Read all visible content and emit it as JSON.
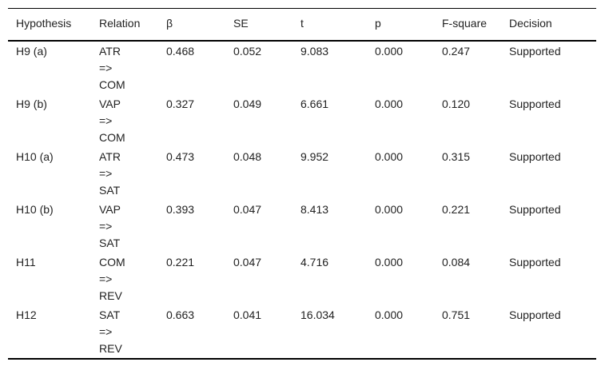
{
  "table": {
    "headers": {
      "hypothesis": "Hypothesis",
      "relation": "Relation",
      "beta": "β",
      "se": "SE",
      "t": "t",
      "p": "p",
      "fsquare": "F-square",
      "decision": "Decision"
    },
    "rows": [
      {
        "hypothesis": "H9 (a)",
        "relation": {
          "from": "ATR",
          "arrow": "=>",
          "to": "COM"
        },
        "beta": "0.468",
        "se": "0.052",
        "t": "9.083",
        "p": "0.000",
        "fsquare": "0.247",
        "decision": "Supported"
      },
      {
        "hypothesis": "H9 (b)",
        "relation": {
          "from": "VAP",
          "arrow": "=>",
          "to": "COM"
        },
        "beta": "0.327",
        "se": "0.049",
        "t": "6.661",
        "p": "0.000",
        "fsquare": "0.120",
        "decision": "Supported"
      },
      {
        "hypothesis": "H10 (a)",
        "relation": {
          "from": "ATR",
          "arrow": "=>",
          "to": "SAT"
        },
        "beta": "0.473",
        "se": "0.048",
        "t": "9.952",
        "p": "0.000",
        "fsquare": "0.315",
        "decision": "Supported"
      },
      {
        "hypothesis": "H10 (b)",
        "relation": {
          "from": "VAP",
          "arrow": "=>",
          "to": "SAT"
        },
        "beta": "0.393",
        "se": "0.047",
        "t": "8.413",
        "p": "0.000",
        "fsquare": "0.221",
        "decision": "Supported"
      },
      {
        "hypothesis": "H11",
        "relation": {
          "from": "COM",
          "arrow": "=>",
          "to": "REV"
        },
        "beta": "0.221",
        "se": "0.047",
        "t": "4.716",
        "p": "0.000",
        "fsquare": "0.084",
        "decision": "Supported"
      },
      {
        "hypothesis": "H12",
        "relation": {
          "from": "SAT",
          "arrow": "=>",
          "to": "REV"
        },
        "beta": "0.663",
        "se": "0.041",
        "t": "16.034",
        "p": "0.000",
        "fsquare": "0.751",
        "decision": "Supported"
      }
    ]
  }
}
